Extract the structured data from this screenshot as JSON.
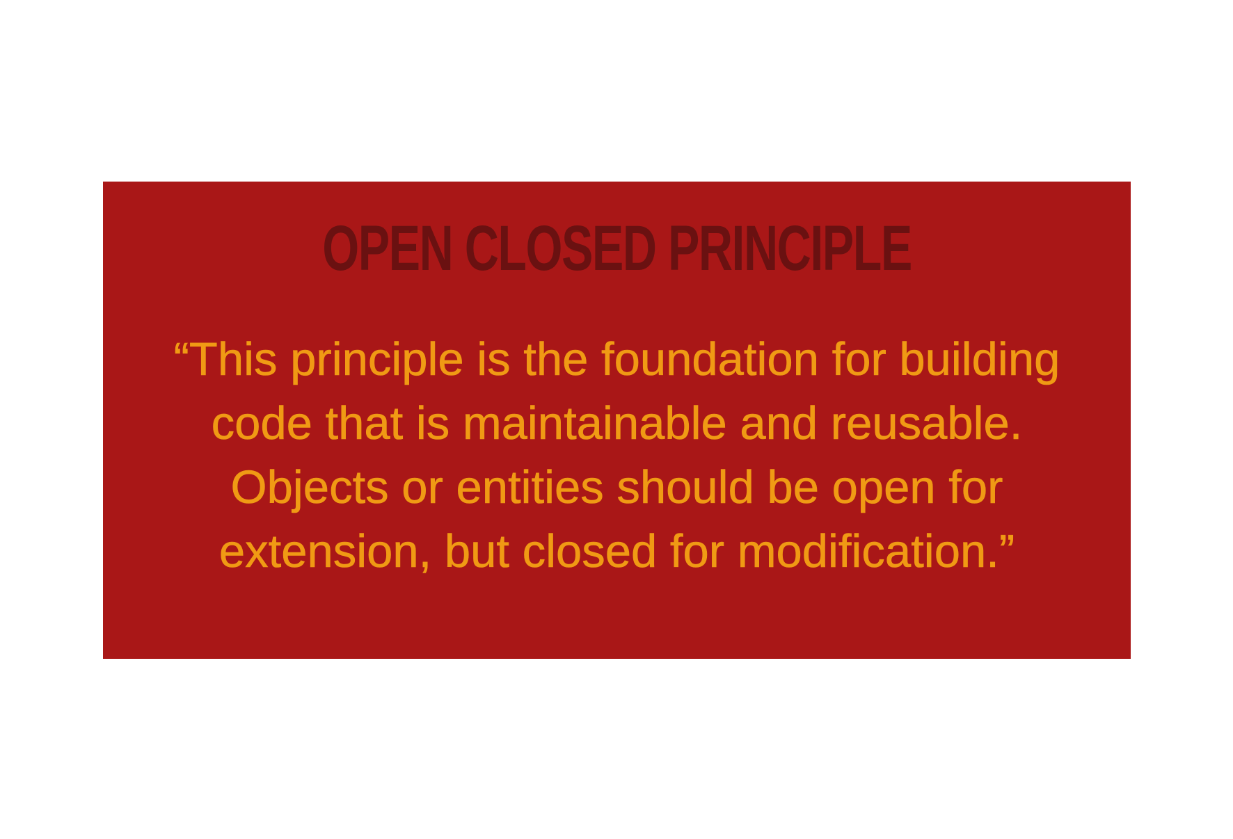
{
  "card": {
    "title": "OPEN CLOSED PRINCIPLE",
    "quote_lines": [
      "“This principle is the foundation for building",
      "code that is maintainable and reusable.",
      "Objects or entities should be open for",
      "extension, but closed for modification.”"
    ]
  },
  "colors": {
    "page_background": "#ffffff",
    "card_background": "#a91717",
    "title_text": "#6a1111",
    "quote_text": "#f09a14"
  }
}
